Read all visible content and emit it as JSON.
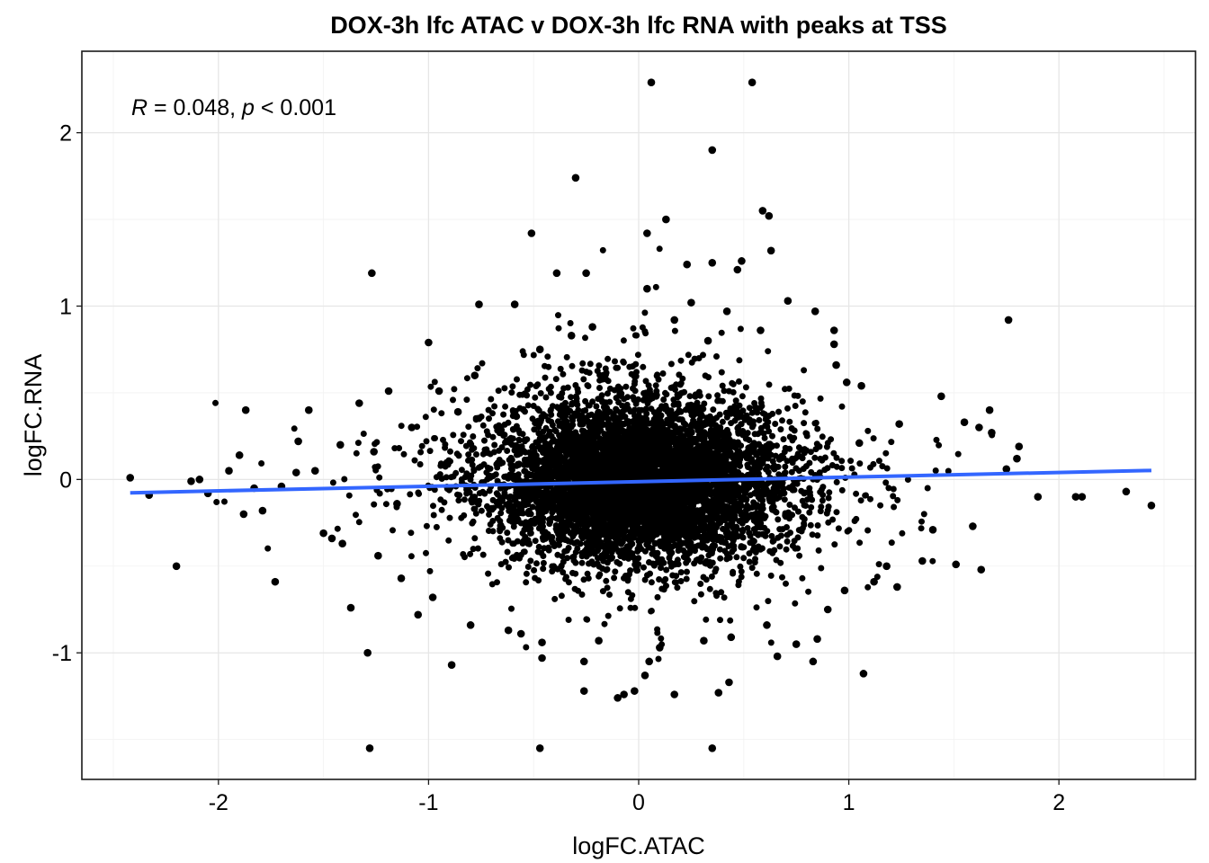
{
  "chart_data": {
    "type": "scatter",
    "title": "DOX-3h lfc ATAC v DOX-3h lfc RNA with peaks at TSS",
    "xlabel": "logFC.ATAC",
    "ylabel": "logFC.RNA",
    "xlim": [
      -2.65,
      2.65
    ],
    "ylim": [
      -1.73,
      2.47
    ],
    "x_ticks": [
      -2,
      -1,
      0,
      1,
      2
    ],
    "x_tick_labels": [
      "-2",
      "-1",
      "0",
      "1",
      "2"
    ],
    "y_ticks": [
      -1,
      0,
      1,
      2
    ],
    "y_tick_labels": [
      "-1",
      "0",
      "1",
      "2"
    ],
    "grid": true,
    "annotation": {
      "r_symbol": "R",
      "r_text": " = 0.048, ",
      "p_symbol": "p",
      "p_text": " < 0.001"
    },
    "trend_line": {
      "color": "#3366FF",
      "x": [
        -2.42,
        2.44
      ],
      "y": [
        -0.077,
        0.052
      ]
    },
    "point_color": "#000000",
    "dense_cloud": {
      "center": [
        0.0,
        -0.01
      ],
      "sd_x": 0.33,
      "sd_y": 0.22,
      "approx_n": 6000
    },
    "points": [
      [
        0.06,
        2.29
      ],
      [
        0.54,
        2.29
      ],
      [
        0.35,
        1.9
      ],
      [
        -0.3,
        1.74
      ],
      [
        0.59,
        1.55
      ],
      [
        0.62,
        1.52
      ],
      [
        0.13,
        1.5
      ],
      [
        0.04,
        1.42
      ],
      [
        -0.51,
        1.42
      ],
      [
        0.63,
        1.32
      ],
      [
        0.49,
        1.26
      ],
      [
        0.35,
        1.25
      ],
      [
        0.23,
        1.24
      ],
      [
        -1.27,
        1.19
      ],
      [
        0.47,
        1.21
      ],
      [
        -0.39,
        1.19
      ],
      [
        -0.25,
        1.19
      ],
      [
        0.04,
        1.1
      ],
      [
        0.25,
        1.02
      ],
      [
        -0.76,
        1.01
      ],
      [
        -0.59,
        1.01
      ],
      [
        0.71,
        1.03
      ],
      [
        1.76,
        0.92
      ],
      [
        -0.32,
        0.83
      ],
      [
        -1.0,
        0.79
      ],
      [
        0.93,
        0.78
      ],
      [
        -0.47,
        0.75
      ],
      [
        0.33,
        0.8
      ],
      [
        -1.87,
        0.4
      ],
      [
        -2.42,
        0.01
      ],
      [
        -2.33,
        -0.09
      ],
      [
        -2.2,
        -0.5
      ],
      [
        -2.09,
        0.0
      ],
      [
        -2.13,
        -0.01
      ],
      [
        -1.73,
        -0.59
      ],
      [
        -1.37,
        -0.74
      ],
      [
        -1.29,
        -1.0
      ],
      [
        -0.89,
        -1.07
      ],
      [
        -1.28,
        -1.55
      ],
      [
        -0.47,
        -1.55
      ],
      [
        0.35,
        -1.55
      ],
      [
        -0.26,
        -1.05
      ],
      [
        -0.46,
        -1.03
      ],
      [
        -0.26,
        -1.22
      ],
      [
        -0.1,
        -1.26
      ],
      [
        -0.07,
        -1.24
      ],
      [
        -0.02,
        -1.22
      ],
      [
        0.03,
        -1.13
      ],
      [
        0.05,
        -1.05
      ],
      [
        0.17,
        -1.24
      ],
      [
        0.38,
        -1.23
      ],
      [
        0.43,
        -1.17
      ],
      [
        0.66,
        -1.02
      ],
      [
        0.83,
        -1.05
      ],
      [
        1.07,
        -1.12
      ],
      [
        1.63,
        -0.52
      ],
      [
        1.44,
        0.48
      ],
      [
        1.67,
        0.4
      ],
      [
        1.81,
        0.19
      ],
      [
        1.8,
        0.12
      ],
      [
        1.75,
        0.06
      ],
      [
        1.9,
        -0.1
      ],
      [
        2.08,
        -0.1
      ],
      [
        2.11,
        -0.1
      ],
      [
        2.32,
        -0.07
      ],
      [
        2.44,
        -0.15
      ],
      [
        1.51,
        -0.49
      ],
      [
        1.35,
        -0.47
      ],
      [
        1.12,
        -0.59
      ],
      [
        1.23,
        -0.62
      ],
      [
        0.99,
        0.56
      ],
      [
        1.06,
        0.54
      ],
      [
        0.94,
        0.66
      ],
      [
        0.84,
        0.97
      ],
      [
        0.93,
        0.86
      ],
      [
        -0.78,
        0.6
      ],
      [
        -0.95,
        0.51
      ],
      [
        -1.19,
        0.51
      ],
      [
        -1.33,
        0.44
      ],
      [
        -1.57,
        0.4
      ],
      [
        -1.54,
        0.05
      ],
      [
        -1.63,
        0.04
      ],
      [
        -1.7,
        -0.04
      ],
      [
        -1.79,
        -0.18
      ],
      [
        -1.88,
        -0.2
      ],
      [
        -1.9,
        0.14
      ],
      [
        -1.46,
        -0.34
      ],
      [
        -1.5,
        -0.31
      ],
      [
        -1.41,
        -0.37
      ],
      [
        -1.24,
        -0.44
      ],
      [
        -1.13,
        -0.57
      ],
      [
        -0.98,
        -0.68
      ],
      [
        -1.05,
        -0.78
      ],
      [
        -0.8,
        -0.84
      ],
      [
        -0.62,
        -0.87
      ],
      [
        -0.56,
        -0.89
      ],
      [
        -0.46,
        -0.94
      ],
      [
        -0.19,
        -0.93
      ],
      [
        0.1,
        -0.97
      ],
      [
        0.31,
        -0.93
      ],
      [
        0.44,
        -0.91
      ],
      [
        0.61,
        -0.84
      ],
      [
        0.75,
        -0.95
      ],
      [
        0.85,
        -0.92
      ],
      [
        0.9,
        -0.75
      ],
      [
        0.98,
        -0.64
      ],
      [
        1.18,
        -0.5
      ],
      [
        1.4,
        -0.29
      ],
      [
        1.59,
        -0.27
      ],
      [
        1.55,
        0.33
      ],
      [
        1.62,
        0.3
      ],
      [
        1.68,
        0.27
      ],
      [
        1.24,
        0.32
      ],
      [
        1.05,
        0.21
      ],
      [
        -0.86,
        0.39
      ],
      [
        -0.66,
        0.29
      ],
      [
        -1.08,
        0.3
      ],
      [
        -1.26,
        0.16
      ],
      [
        -1.42,
        0.2
      ],
      [
        -1.62,
        0.22
      ],
      [
        -1.95,
        0.05
      ],
      [
        -1.83,
        -0.05
      ],
      [
        -2.05,
        -0.08
      ],
      [
        -1.15,
        -0.14
      ],
      [
        -0.22,
        0.88
      ],
      [
        0.17,
        0.92
      ],
      [
        0.42,
        0.97
      ],
      [
        0.58,
        0.86
      ]
    ]
  }
}
